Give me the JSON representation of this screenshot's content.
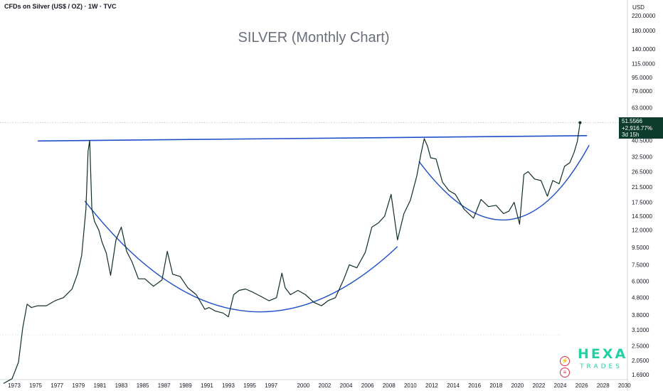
{
  "header": {
    "symbol_text": "CFDs on Silver (US$ / OZ) · 1W · TVC"
  },
  "title": "SILVER (Monthly Chart)",
  "currency": "USD",
  "price_tag": {
    "price": "51.5566",
    "change": "+2,916.77%",
    "countdown": "3d 15h"
  },
  "branding": {
    "line1": "HEXA",
    "line2": "TRADES"
  },
  "icons": {
    "badge1": "lightning-icon",
    "badge2": "us-flag-icon"
  },
  "colors": {
    "price_line": "#0f2f23",
    "pattern_lines": "#1f4fc9",
    "accent": "#21d1a4",
    "tag_bg": "#0d3b2c"
  },
  "chart_data": {
    "type": "line",
    "title": "SILVER (Monthly Chart)",
    "scale": "log",
    "ylabel": "USD",
    "y_ticks": [
      "220.0000",
      "180.0000",
      "140.0000",
      "115.0000",
      "95.0000",
      "79.0000",
      "63.0000",
      "40.5000",
      "32.5000",
      "26.5000",
      "21.5000",
      "17.5000",
      "14.5000",
      "12.0000",
      "9.5000",
      "7.5000",
      "6.0000",
      "4.8000",
      "3.8000",
      "3.1000",
      "2.5000",
      "2.0500",
      "1.6900"
    ],
    "x_ticks": [
      "1973",
      "1975",
      "1977",
      "1979",
      "1981",
      "1983",
      "1985",
      "1987",
      "1989",
      "1991",
      "1993",
      "1995",
      "1997",
      "2000",
      "2002",
      "2004",
      "2006",
      "2008",
      "2010",
      "2012",
      "2014",
      "2016",
      "2018",
      "2020",
      "2022",
      "2024",
      "2026",
      "2028",
      "2030"
    ],
    "series": [
      {
        "x": [
          1972.0,
          1972.8,
          1973.4,
          1973.8,
          1974.2,
          1974.6,
          1975.2,
          1976.0,
          1976.8,
          1977.6,
          1978.4,
          1978.9,
          1979.3,
          1979.7,
          1979.9,
          1980.05,
          1980.25,
          1980.5,
          1980.9,
          1981.2,
          1981.6,
          1982.0,
          1982.5,
          1983.0,
          1983.5,
          1984.0,
          1984.6,
          1985.2,
          1986.0,
          1986.8,
          1987.3,
          1987.8,
          1988.5,
          1989.2,
          1990.0,
          1990.8,
          1991.2,
          1991.8,
          1992.5,
          1993.0,
          1993.5,
          1994.0,
          1994.6,
          1995.2,
          1996.0,
          1996.8,
          1997.5,
          1998.0,
          1998.3,
          1998.8,
          1999.5,
          2000.2,
          2001.0,
          2001.7,
          2002.3,
          2003.0,
          2003.8,
          2004.3,
          2005.0,
          2005.8,
          2006.4,
          2007.0,
          2007.6,
          2008.2,
          2008.8,
          2009.4,
          2010.0,
          2010.6,
          2011.0,
          2011.3,
          2011.6,
          2011.9,
          2012.4,
          2013.0,
          2013.6,
          2014.2,
          2015.0,
          2015.9,
          2016.6,
          2017.3,
          2018.0,
          2018.7,
          2019.2,
          2019.7,
          2020.2,
          2020.6,
          2021.0,
          2021.6,
          2022.2,
          2022.8,
          2023.3,
          2023.9,
          2024.4,
          2024.9,
          2025.3,
          2025.6,
          2025.85
        ],
        "y": [
          1.5,
          1.6,
          2.0,
          3.2,
          4.4,
          4.2,
          4.3,
          4.3,
          4.6,
          4.8,
          5.4,
          6.6,
          8.5,
          16.0,
          35.0,
          40.5,
          16.0,
          13.5,
          12.0,
          10.2,
          8.8,
          6.5,
          10.5,
          12.5,
          9.0,
          7.8,
          6.2,
          6.2,
          5.6,
          6.1,
          9.0,
          6.6,
          6.4,
          5.5,
          5.0,
          4.1,
          4.2,
          4.0,
          3.9,
          3.7,
          5.0,
          5.3,
          5.4,
          5.2,
          4.9,
          4.6,
          4.8,
          6.7,
          5.5,
          5.0,
          5.3,
          5.0,
          4.5,
          4.3,
          4.6,
          4.8,
          6.2,
          7.5,
          7.2,
          8.9,
          12.5,
          13.2,
          14.5,
          19.5,
          10.5,
          15.0,
          18.0,
          25.0,
          34.0,
          41.5,
          37.5,
          32.0,
          31.5,
          23.0,
          20.5,
          19.5,
          16.0,
          14.1,
          18.2,
          16.5,
          16.8,
          15.0,
          15.5,
          17.5,
          13.0,
          25.5,
          26.5,
          24.0,
          23.5,
          19.0,
          23.5,
          22.5,
          28.5,
          30.0,
          34.5,
          40.0,
          51.5566
        ]
      }
    ]
  }
}
